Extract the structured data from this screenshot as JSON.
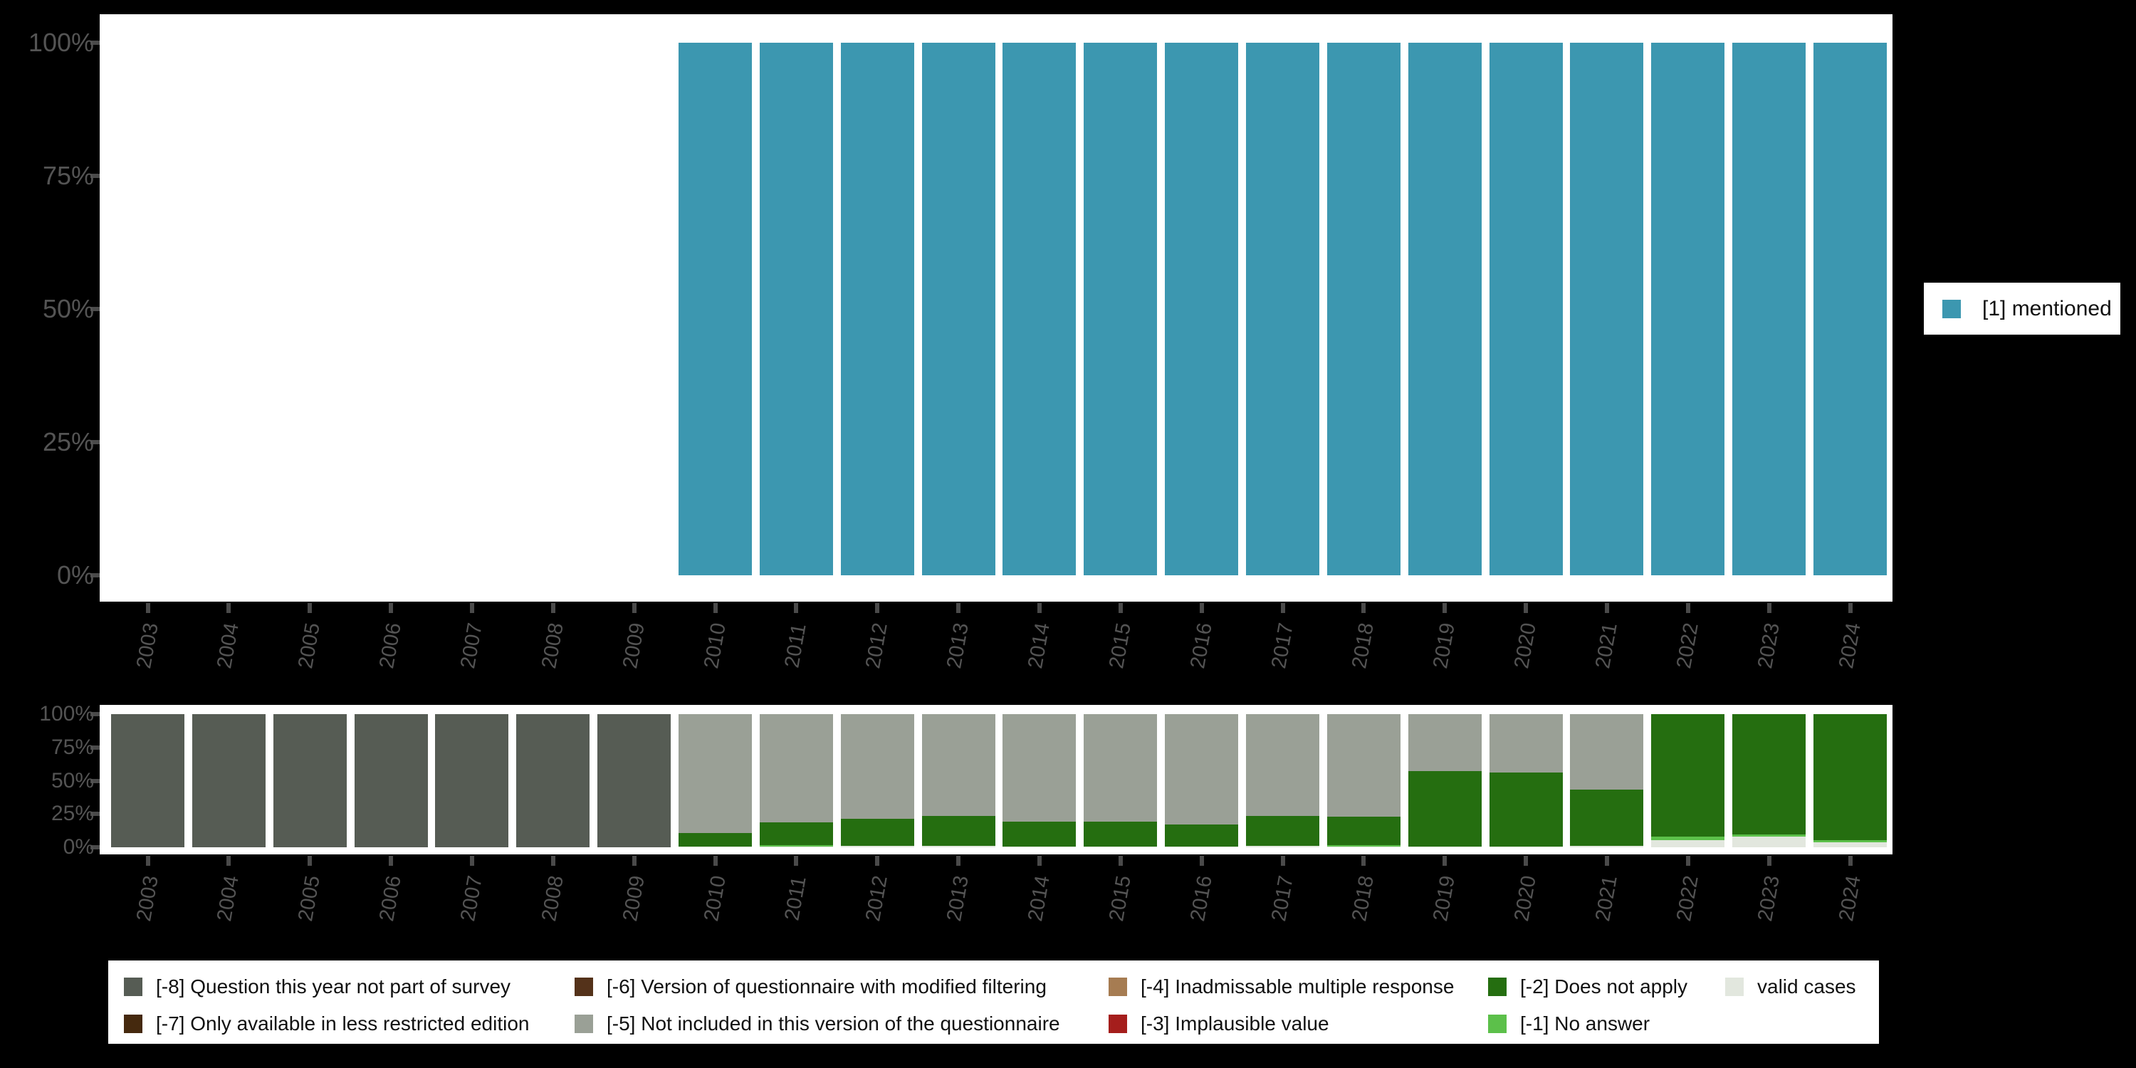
{
  "background_color": "#000000",
  "panel_color": "#ffffff",
  "axis": {
    "tick_color": "#4a4a4a",
    "label_color": "#545454",
    "y_tick_labels": [
      "100%",
      "75%",
      "50%",
      "25%",
      "0%"
    ],
    "y_tick_values": [
      100,
      75,
      50,
      25,
      0
    ]
  },
  "legend_right": {
    "label": "[1] mentioned",
    "color": "#3c97b0"
  },
  "legend_bottom": {
    "columns": [
      [
        {
          "label": "[-8] Question this year not part of survey",
          "color": "#565c54"
        },
        {
          "label": "[-7] Only available in less restricted edition",
          "color": "#45290e"
        }
      ],
      [
        {
          "label": "[-6] Version of questionnaire with modified filtering",
          "color": "#54321a"
        },
        {
          "label": "[-5] Not included in this version of the questionnaire",
          "color": "#9aa096"
        }
      ],
      [
        {
          "label": "[-4] Inadmissable multiple response",
          "color": "#a67c52"
        },
        {
          "label": "[-3] Implausible value",
          "color": "#a51e1c"
        }
      ],
      [
        {
          "label": "[-2] Does not apply",
          "color": "#256e10"
        },
        {
          "label": "[-1] No answer",
          "color": "#5cc04a"
        }
      ],
      [
        {
          "label": "valid cases",
          "color": "#e2e7de"
        }
      ]
    ]
  },
  "chart_data": [
    {
      "type": "bar",
      "stacked": true,
      "title": "",
      "xlabel": "",
      "ylabel": "",
      "ylim": [
        0,
        100
      ],
      "grid": false,
      "legend_position": "right",
      "categories": [
        "2003",
        "2004",
        "2005",
        "2006",
        "2007",
        "2008",
        "2009",
        "2010",
        "2011",
        "2012",
        "2013",
        "2014",
        "2015",
        "2016",
        "2017",
        "2018",
        "2019",
        "2020",
        "2021",
        "2022",
        "2023",
        "2024"
      ],
      "series": [
        {
          "name": "[1] mentioned",
          "color": "#3c97b0",
          "values": [
            0,
            0,
            0,
            0,
            0,
            0,
            0,
            100,
            100,
            100,
            100,
            100,
            100,
            100,
            100,
            100,
            100,
            100,
            100,
            100,
            100,
            100
          ]
        }
      ],
      "stack_order_bottom_to_top": [
        "[1] mentioned"
      ]
    },
    {
      "type": "bar",
      "stacked": true,
      "title": "",
      "xlabel": "",
      "ylabel": "",
      "ylim": [
        0,
        100
      ],
      "grid": false,
      "legend_position": "bottom",
      "categories": [
        "2003",
        "2004",
        "2005",
        "2006",
        "2007",
        "2008",
        "2009",
        "2010",
        "2011",
        "2012",
        "2013",
        "2014",
        "2015",
        "2016",
        "2017",
        "2018",
        "2019",
        "2020",
        "2021",
        "2022",
        "2023",
        "2024"
      ],
      "series": [
        {
          "name": "[-8] Question this year not part of survey",
          "color": "#565c54",
          "values": [
            100,
            100,
            100,
            100,
            100,
            100,
            100,
            0,
            0,
            0,
            0,
            0,
            0,
            0,
            0,
            0,
            0,
            0,
            0,
            0,
            0,
            0
          ]
        },
        {
          "name": "[-7] Only available in less restricted edition",
          "color": "#45290e",
          "values": [
            0,
            0,
            0,
            0,
            0,
            0,
            0,
            0,
            0,
            0,
            0,
            0,
            0,
            0,
            0,
            0,
            0,
            0,
            0,
            0,
            0,
            0
          ]
        },
        {
          "name": "[-6] Version of questionnaire with modified filtering",
          "color": "#54321a",
          "values": [
            0,
            0,
            0,
            0,
            0,
            0,
            0,
            0,
            0,
            0,
            0,
            0,
            0,
            0,
            0,
            0,
            0,
            0,
            0,
            0,
            0,
            0
          ]
        },
        {
          "name": "[-5] Not included in this version of the questionnaire",
          "color": "#9aa096",
          "values": [
            0,
            0,
            0,
            0,
            0,
            0,
            0,
            89.5,
            81.5,
            78.5,
            76.5,
            80.5,
            80.5,
            83,
            76.5,
            77,
            43,
            44,
            56.5,
            0,
            0,
            0
          ]
        },
        {
          "name": "[-4] Inadmissable multiple response",
          "color": "#a67c52",
          "values": [
            0,
            0,
            0,
            0,
            0,
            0,
            0,
            0,
            0,
            0,
            0,
            0,
            0,
            0,
            0,
            0,
            0,
            0,
            0,
            0,
            0,
            0
          ]
        },
        {
          "name": "[-3] Implausible value",
          "color": "#a51e1c",
          "values": [
            0,
            0,
            0,
            0,
            0,
            0,
            0,
            0,
            0,
            0,
            0,
            0,
            0,
            0,
            0,
            0,
            0,
            0,
            0,
            0,
            0,
            0
          ]
        },
        {
          "name": "[-2] Does not apply",
          "color": "#256e10",
          "values": [
            0,
            0,
            0,
            0,
            0,
            0,
            0,
            10,
            17,
            20.5,
            22.5,
            19,
            19,
            16.5,
            22.5,
            21.5,
            56.5,
            55.5,
            42.5,
            92,
            90.5,
            94.5
          ]
        },
        {
          "name": "[-1] No answer",
          "color": "#5cc04a",
          "values": [
            0,
            0,
            0,
            0,
            0,
            0,
            0,
            0,
            1,
            0,
            0,
            0,
            0,
            0,
            0,
            0.8,
            0,
            0,
            0,
            2.5,
            1.5,
            1.5
          ]
        },
        {
          "name": "valid cases",
          "color": "#e2e7de",
          "values": [
            0,
            0,
            0,
            0,
            0,
            0,
            0,
            0.5,
            0.5,
            1,
            1,
            0.5,
            0.5,
            0.5,
            1,
            0.7,
            0.5,
            0.5,
            1,
            5.5,
            8,
            4
          ]
        }
      ],
      "stack_order_bottom_to_top": [
        "valid cases",
        "[-1] No answer",
        "[-2] Does not apply",
        "[-3] Implausible value",
        "[-4] Inadmissable multiple response",
        "[-5] Not included in this version of the questionnaire",
        "[-6] Version of questionnaire with modified filtering",
        "[-7] Only available in less restricted edition",
        "[-8] Question this year not part of survey"
      ]
    }
  ]
}
